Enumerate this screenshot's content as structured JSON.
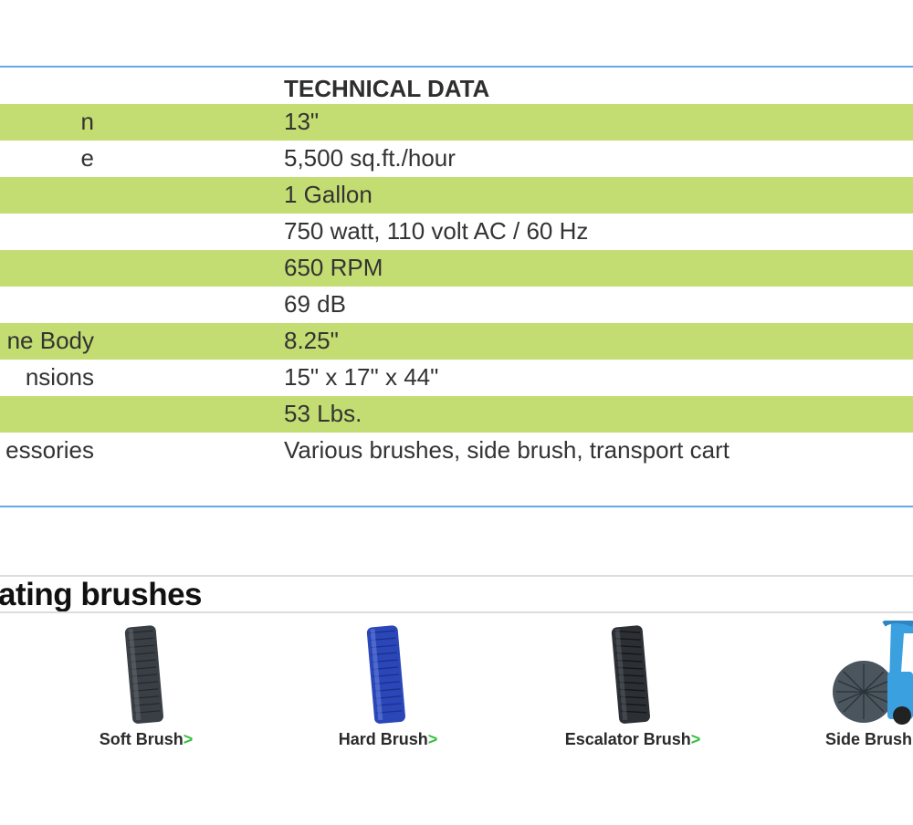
{
  "spec_table": {
    "header": "TECHNICAL DATA",
    "rows": [
      {
        "label": "n",
        "value": "13\""
      },
      {
        "label": "e",
        "value": "5,500 sq.ft./hour"
      },
      {
        "label": "",
        "value": "1 Gallon"
      },
      {
        "label": "",
        "value": "750 watt, 110 volt AC / 60 Hz"
      },
      {
        "label": "",
        "value": "650 RPM"
      },
      {
        "label": "",
        "value": "69 dB"
      },
      {
        "label": "ne Body",
        "value": "8.25\""
      },
      {
        "label": "nsions",
        "value": "15\" x 17\" x 44\""
      },
      {
        "label": "",
        "value": "53 Lbs."
      },
      {
        "label": "essories",
        "value": "Various brushes, side brush, transport cart"
      }
    ]
  },
  "brushes": {
    "title": "ating brushes",
    "arrow": ">",
    "items": [
      {
        "caption": "Soft Brush",
        "color": "#3a3f45",
        "icon": "soft-brush-image"
      },
      {
        "caption": "Hard Brush",
        "color": "#2a46b8",
        "icon": "hard-brush-image"
      },
      {
        "caption": "Escalator Brush",
        "color": "#2c3035",
        "icon": "escalator-brush-image"
      },
      {
        "caption": "Side Brush",
        "color": "#3f4a52",
        "icon": "side-brush-image"
      }
    ]
  },
  "colors": {
    "accent_rule": "#6aa7e6",
    "row_highlight": "#c3dd72",
    "arrow": "#33c13a",
    "side_brush_frame": "#3aa0e0"
  }
}
